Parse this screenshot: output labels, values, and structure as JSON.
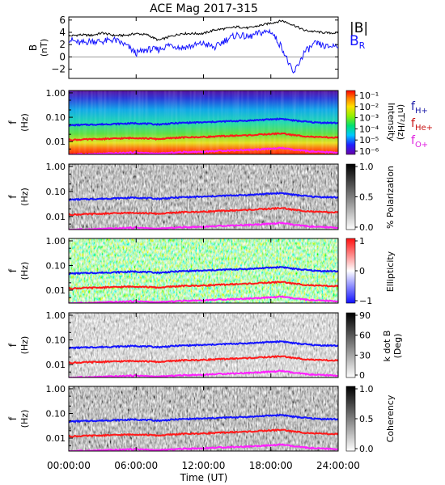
{
  "title": "ACE Mag 2017-315",
  "xaxis": {
    "label": "Time (UT)",
    "ticks": [
      "00:00:00",
      "06:00:00",
      "12:00:00",
      "18:00:00",
      "24:00:00"
    ],
    "hours": [
      0,
      6,
      12,
      18,
      24
    ]
  },
  "legend": {
    "top": [
      {
        "label": "|B|",
        "color": "#000000"
      },
      {
        "label": "B",
        "sub": "R",
        "color": "#1414ff"
      }
    ],
    "freq": [
      {
        "label": "f",
        "sub": "H+",
        "color": "#1a1aa8"
      },
      {
        "label": "f",
        "sub": "He+",
        "color": "#c81414"
      },
      {
        "label": "f",
        "sub": "O+",
        "color": "#e020e0"
      }
    ]
  },
  "colors": {
    "blue": "#1414ff",
    "red": "#ff1a1a",
    "magenta": "#ff20ff",
    "black": "#000000"
  },
  "chart_data": [
    {
      "type": "line",
      "panel": "magnetic-field",
      "ylabel": "B",
      "yunit": "(nT)",
      "ylim": [
        -3.5,
        6.5
      ],
      "yticks": [
        "6",
        "4",
        "2",
        "0",
        "−2"
      ],
      "ytick_values": [
        6,
        4,
        2,
        0,
        -2
      ],
      "x_hours": [
        0,
        1,
        2,
        3,
        4,
        5,
        6,
        7,
        8,
        9,
        10,
        11,
        12,
        13,
        14,
        15,
        16,
        17,
        18,
        19,
        20,
        21,
        22,
        23,
        24
      ],
      "series": [
        {
          "name": "|B|",
          "color": "#000000",
          "values": [
            3.4,
            3.6,
            3.5,
            3.9,
            3.5,
            3.5,
            3.8,
            3.6,
            2.7,
            3.3,
            3.8,
            3.8,
            3.8,
            4.4,
            4.6,
            4.9,
            4.7,
            5.1,
            5.5,
            5.9,
            5.2,
            4.3,
            4.1,
            3.9,
            3.9
          ]
        },
        {
          "name": "B_R",
          "color": "#1414ff",
          "values": [
            2.9,
            2.2,
            2.6,
            2.5,
            2.8,
            2.0,
            0.6,
            1.2,
            1.2,
            2.0,
            1.5,
            1.8,
            2.2,
            1.5,
            2.8,
            3.6,
            3.2,
            3.9,
            4.2,
            1.5,
            -2.8,
            0.8,
            2.2,
            1.6,
            2.0
          ]
        }
      ]
    },
    {
      "type": "heatmap",
      "panel": "power-spectrum",
      "ylabel": "f",
      "yunit": "(Hz)",
      "yscale": "log",
      "yticks": [
        "1.00",
        "0.10",
        "0.01"
      ],
      "colorbar": {
        "label": "Intensity",
        "unit": "(nT²/Hz)",
        "scale": "log",
        "ticks": [
          "10⁻¹",
          "10⁻²",
          "10⁻³",
          "10⁻⁴",
          "10⁻⁵",
          "10⁻⁶"
        ],
        "colormap": "rainbow"
      }
    },
    {
      "type": "heatmap",
      "panel": "polarization",
      "ylabel": "f",
      "yunit": "(Hz)",
      "yscale": "log",
      "yticks": [
        "1.00",
        "0.10",
        "0.01"
      ],
      "colorbar": {
        "label": "% Polarization",
        "ticks": [
          "1.0",
          "0.5",
          "0.0"
        ],
        "colormap": "grayscale"
      }
    },
    {
      "type": "heatmap",
      "panel": "ellipticity",
      "ylabel": "f",
      "yunit": "(Hz)",
      "yscale": "log",
      "yticks": [
        "1.00",
        "0.10",
        "0.01"
      ],
      "colorbar": {
        "label": "Ellipticity",
        "ticks": [
          "1",
          "0",
          "−1"
        ],
        "colormap": "blue-white-red"
      }
    },
    {
      "type": "heatmap",
      "panel": "wave-normal-angle",
      "ylabel": "f",
      "yunit": "(Hz)",
      "yscale": "log",
      "yticks": [
        "1.00",
        "0.10",
        "0.01"
      ],
      "colorbar": {
        "label": "k dot B",
        "unit": "(Deg)",
        "ticks": [
          "90",
          "60",
          "30",
          "0"
        ],
        "colormap": "grayscale"
      }
    },
    {
      "type": "heatmap",
      "panel": "coherency",
      "ylabel": "f",
      "yunit": "(Hz)",
      "yscale": "log",
      "yticks": [
        "1.00",
        "0.10",
        "0.01"
      ],
      "colorbar": {
        "label": "Coherency",
        "ticks": [
          "1.0",
          "0.5",
          "0.0"
        ],
        "colormap": "grayscale"
      }
    }
  ],
  "gyrofrequency_hz": {
    "x_hours": [
      0,
      2,
      4,
      6,
      8,
      10,
      12,
      14,
      16,
      18,
      19,
      20,
      21,
      22,
      24
    ],
    "H+": [
      0.047,
      0.05,
      0.053,
      0.057,
      0.051,
      0.059,
      0.062,
      0.068,
      0.073,
      0.082,
      0.087,
      0.074,
      0.067,
      0.061,
      0.058
    ],
    "He+": [
      0.0118,
      0.0125,
      0.0133,
      0.0142,
      0.0128,
      0.0148,
      0.0155,
      0.017,
      0.0183,
      0.0205,
      0.0218,
      0.0185,
      0.0168,
      0.0153,
      0.0145
    ],
    "O+": [
      0.003,
      0.0031,
      0.0033,
      0.0036,
      0.0032,
      0.0037,
      0.0039,
      0.0043,
      0.0046,
      0.0051,
      0.0055,
      0.0046,
      0.0042,
      0.0038,
      0.0036
    ]
  }
}
